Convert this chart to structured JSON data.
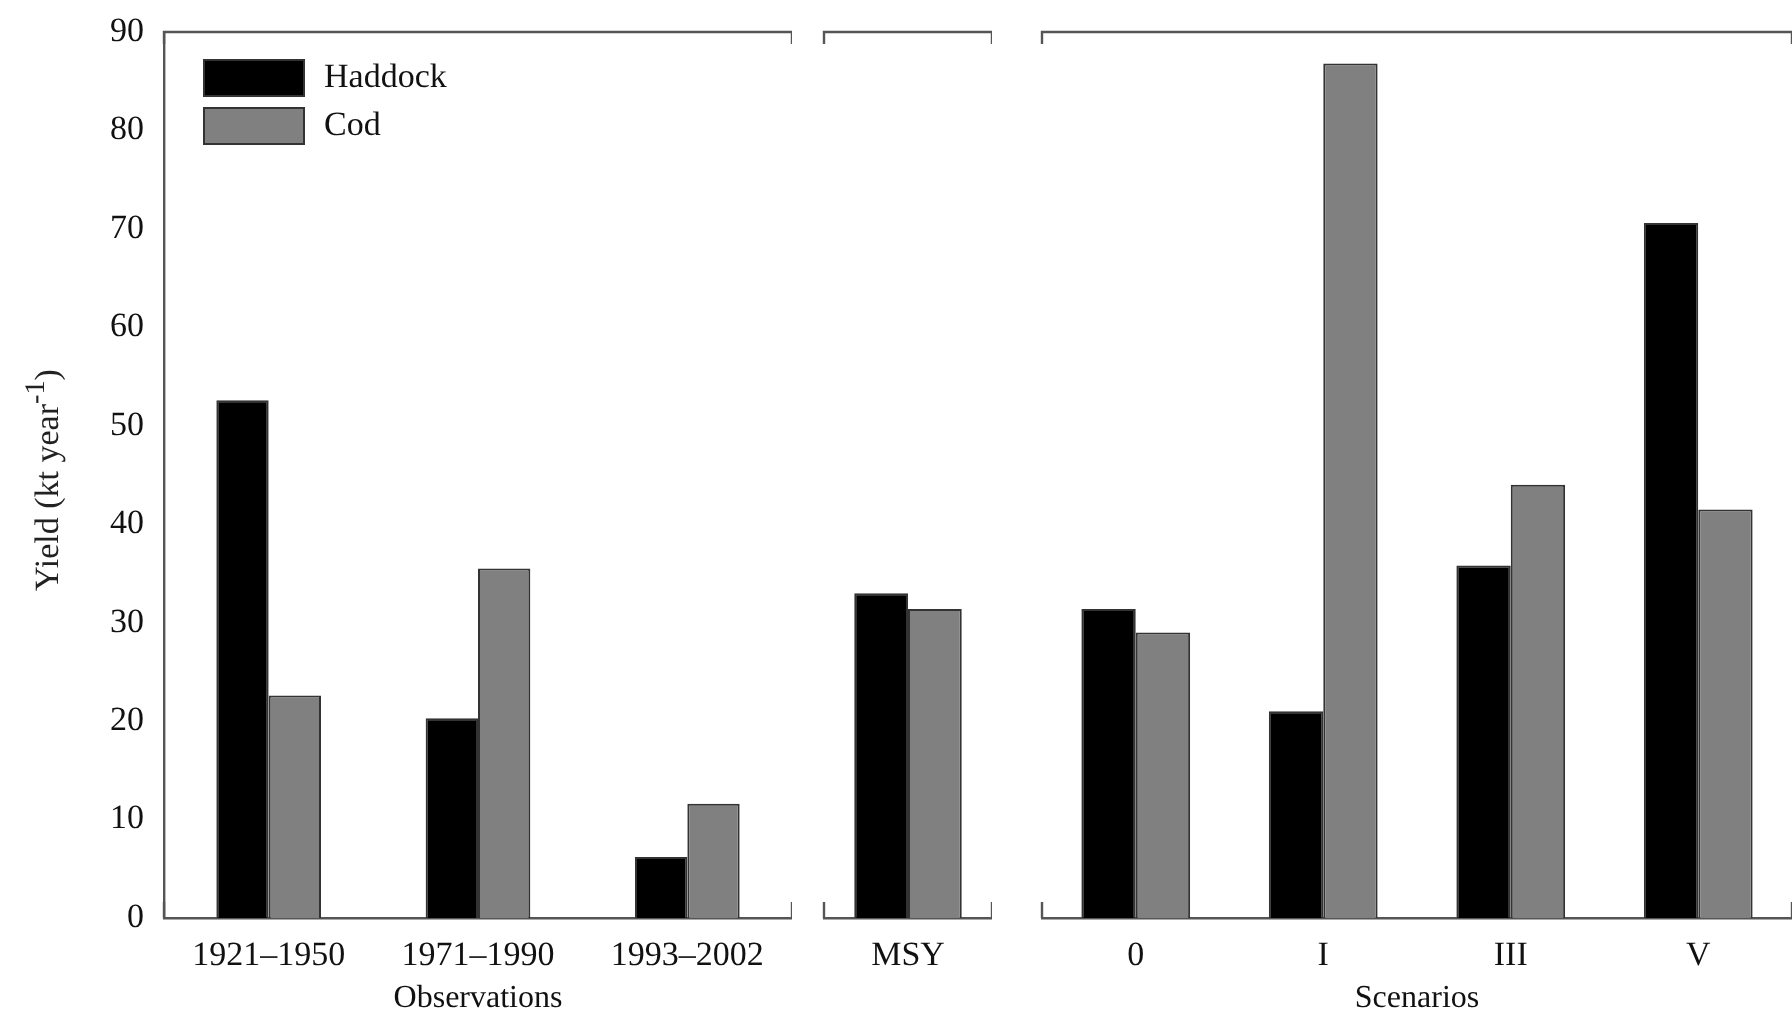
{
  "chart_data": [
    {
      "type": "bar",
      "ylabel": "Yield (kt year$^{-1}$)",
      "xlabel": "Observations",
      "categories": [
        "1921–1950",
        "1971–1990",
        "1993–2002"
      ],
      "series": [
        {
          "name": "Haddock",
          "color": "#000000",
          "values": [
            52.6,
            20.3,
            6.2
          ]
        },
        {
          "name": "Cod",
          "color": "#808080",
          "values": [
            22.6,
            35.5,
            11.6
          ]
        }
      ],
      "ylim": [
        0,
        90
      ],
      "yticks": [
        0,
        10,
        20,
        30,
        40,
        50,
        60,
        70,
        80,
        90
      ],
      "legend": "top left",
      "grid": false
    },
    {
      "type": "bar",
      "categories": [
        "MSY"
      ],
      "series": [
        {
          "color": "#000000",
          "values": [
            33
          ]
        },
        {
          "color": "#808080",
          "values": [
            31.4
          ]
        }
      ],
      "ylim": [
        0,
        90
      ],
      "tick_labels": "x",
      "grid": false
    },
    {
      "type": "bar",
      "xlabel": "Scenarios",
      "categories": [
        "0",
        "I",
        "III",
        "V"
      ],
      "series": [
        {
          "color": "#000000",
          "values": [
            31.4,
            21,
            35.8,
            70.6
          ]
        },
        {
          "color": "#808080",
          "values": [
            29,
            86.8,
            44,
            41.5
          ]
        }
      ],
      "ylim": [
        0,
        90
      ],
      "tick_labels": "x",
      "grid": false
    }
  ]
}
